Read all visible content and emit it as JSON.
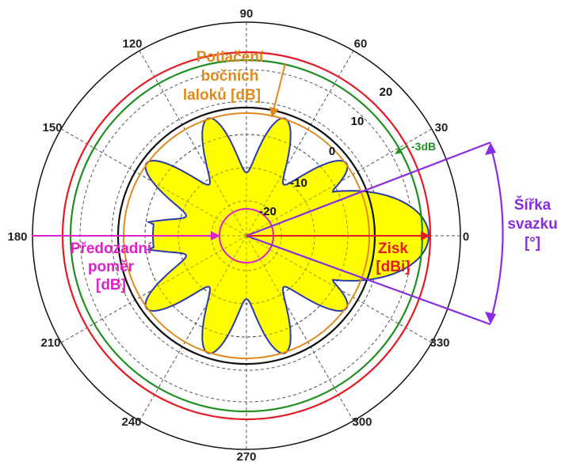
{
  "angle_labels": [
    "90",
    "60",
    "30",
    "0",
    "330",
    "300",
    "270",
    "240",
    "210",
    "180",
    "150",
    "120"
  ],
  "radial_labels": [
    "20",
    "10",
    "0",
    "-10",
    "-20"
  ],
  "annotations": {
    "sidelobe_line1": "Potlačení",
    "sidelobe_line2": "bočních",
    "sidelobe_line3": "laloků [dB]",
    "minus3db": "-3dB",
    "beamwidth_line1": "Šířka",
    "beamwidth_line2": "svazku",
    "beamwidth_line3": "[°]",
    "fb_line1": "Předozadní",
    "fb_line2": "poměr",
    "fb_line3": "[dB]",
    "gain_line1": "Zisk",
    "gain_line2": "[dBi]"
  },
  "colors": {
    "pattern_fill": "#ffff00",
    "pattern_stroke": "#2a3aa8",
    "gain_circle": "#e31b23",
    "minus3db_circle": "#1f8f1f",
    "sidelobe_circle": "#e08a1e",
    "reference_circle": "#111111",
    "front_back": "#e020c8",
    "beamwidth": "#8a2be2",
    "gain_arrow": "#e31b23"
  }
}
